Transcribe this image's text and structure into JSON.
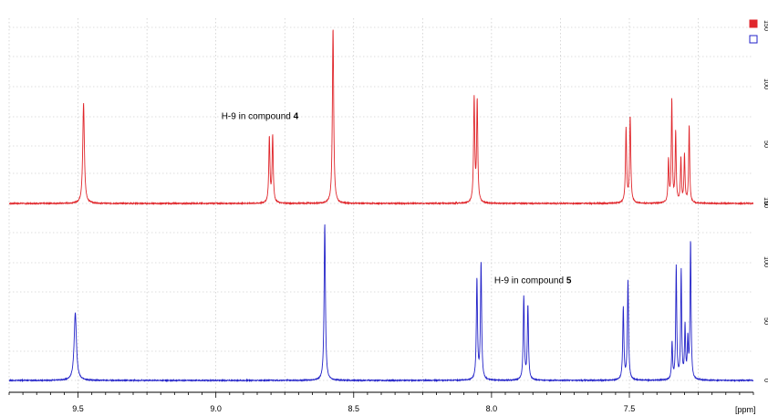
{
  "chart_data": {
    "type": "line",
    "title": "",
    "xlabel": "",
    "ylabel": "",
    "x_unit_label": "[ppm]",
    "xlim": [
      9.75,
      7.05
    ],
    "x_reversed": true,
    "grid": true,
    "x_ticks": [
      9.5,
      9.0,
      8.5,
      8.0,
      7.5
    ],
    "x_tick_labels": [
      "9.5",
      "9.0",
      "8.5",
      "8.0",
      "7.5"
    ],
    "series": [
      {
        "color": "#e0262b",
        "baseline_fraction": 0.0,
        "peaks": [
          {
            "shift": 9.48,
            "height": 0.57,
            "width": 0.0035
          },
          {
            "shift": 8.806,
            "height": 0.37,
            "width": 0.0025
          },
          {
            "shift": 8.794,
            "height": 0.38,
            "width": 0.0025
          },
          {
            "shift": 8.575,
            "height": 1.0,
            "width": 0.0028
          },
          {
            "shift": 8.063,
            "height": 0.59,
            "width": 0.0025
          },
          {
            "shift": 8.052,
            "height": 0.57,
            "width": 0.0025
          },
          {
            "shift": 7.512,
            "height": 0.42,
            "width": 0.0025
          },
          {
            "shift": 7.497,
            "height": 0.49,
            "width": 0.0025
          },
          {
            "shift": 7.358,
            "height": 0.24,
            "width": 0.0022
          },
          {
            "shift": 7.346,
            "height": 0.58,
            "width": 0.0022
          },
          {
            "shift": 7.332,
            "height": 0.4,
            "width": 0.0022
          },
          {
            "shift": 7.313,
            "height": 0.25,
            "width": 0.0022
          },
          {
            "shift": 7.3,
            "height": 0.27,
            "width": 0.0022
          },
          {
            "shift": 7.283,
            "height": 0.44,
            "width": 0.0022
          }
        ]
      },
      {
        "color": "#2222c8",
        "baseline_fraction": 0.0,
        "peaks": [
          {
            "shift": 9.51,
            "height": 0.43,
            "width": 0.005
          },
          {
            "shift": 8.605,
            "height": 1.0,
            "width": 0.0028
          },
          {
            "shift": 8.053,
            "height": 0.64,
            "width": 0.0025
          },
          {
            "shift": 8.038,
            "height": 0.74,
            "width": 0.0025
          },
          {
            "shift": 7.883,
            "height": 0.53,
            "width": 0.0025
          },
          {
            "shift": 7.868,
            "height": 0.47,
            "width": 0.0025
          },
          {
            "shift": 7.522,
            "height": 0.46,
            "width": 0.0025
          },
          {
            "shift": 7.505,
            "height": 0.63,
            "width": 0.0025
          },
          {
            "shift": 7.345,
            "height": 0.23,
            "width": 0.0022
          },
          {
            "shift": 7.33,
            "height": 0.72,
            "width": 0.0022
          },
          {
            "shift": 7.312,
            "height": 0.69,
            "width": 0.0022
          },
          {
            "shift": 7.298,
            "height": 0.33,
            "width": 0.0022
          },
          {
            "shift": 7.288,
            "height": 0.24,
            "width": 0.0022
          },
          {
            "shift": 7.278,
            "height": 0.88,
            "width": 0.0022
          }
        ]
      }
    ],
    "annotations": [
      {
        "text": "H-9 in compound ",
        "bold": "4",
        "shift": 8.98,
        "series": 0,
        "level": 0.48
      },
      {
        "text": "H-9 in compound ",
        "bold": "5",
        "shift": 7.99,
        "series": 1,
        "level": 0.62
      }
    ],
    "y_ticks_right": [
      "0",
      "50",
      "100",
      "150"
    ],
    "legend": {
      "placement": "top-right",
      "items": [
        {
          "color": "#e0262b",
          "filled": true
        },
        {
          "color": "#2222c8",
          "filled": false
        }
      ]
    }
  }
}
